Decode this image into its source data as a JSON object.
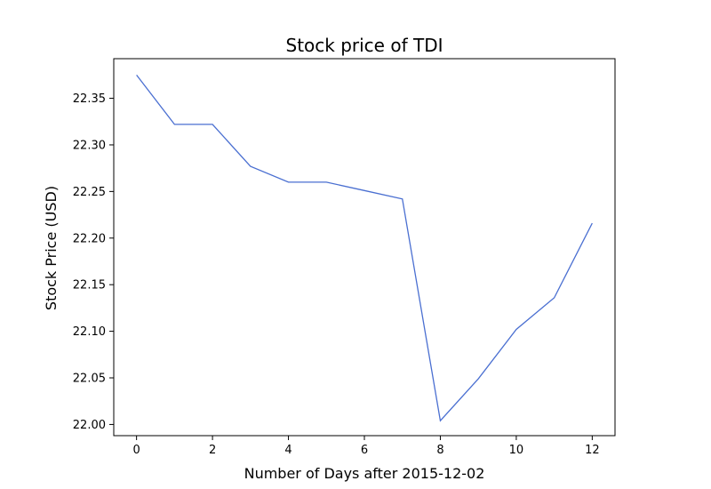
{
  "chart_data": {
    "type": "line",
    "title": "Stock price of TDI",
    "xlabel": "Number of Days after 2015-12-02",
    "ylabel": "Stock Price (USD)",
    "xlim": [
      -0.6,
      12.6
    ],
    "ylim": [
      21.988,
      22.3925
    ],
    "xticks": [
      0,
      2,
      4,
      6,
      8,
      10,
      12
    ],
    "xtick_labels": [
      "0",
      "2",
      "4",
      "6",
      "8",
      "10",
      "12"
    ],
    "yticks": [
      22.0,
      22.05,
      22.1,
      22.15,
      22.2,
      22.25,
      22.3,
      22.35
    ],
    "ytick_labels": [
      "22.00",
      "22.05",
      "22.10",
      "22.15",
      "22.20",
      "22.25",
      "22.30",
      "22.35"
    ],
    "grid": false,
    "legend": false,
    "series": [
      {
        "color": "#4a6fd1",
        "x": [
          0,
          1,
          2,
          3,
          4,
          5,
          6,
          7,
          8,
          9,
          10,
          11,
          12
        ],
        "y": [
          22.375,
          22.322,
          22.322,
          22.277,
          22.26,
          22.26,
          22.251,
          22.242,
          22.004,
          22.049,
          22.102,
          22.136,
          22.216
        ]
      }
    ]
  }
}
